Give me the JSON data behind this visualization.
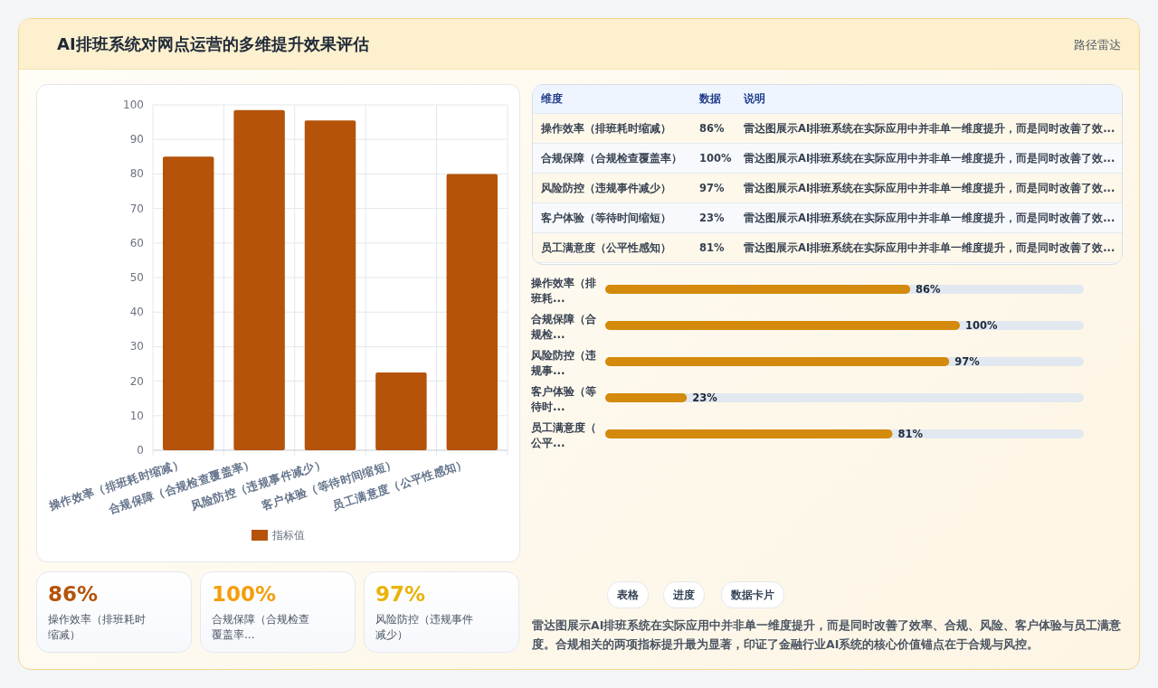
{
  "chart_data": [
    {
      "type": "bar",
      "title": "AI排班系统对网点运营的多维提升效果评估",
      "annotations": [
        "路径雷达"
      ],
      "categories": [
        "操作效率（排班耗时缩减）",
        "合规保障（合规检查覆盖率）",
        "风险防控（违规事件减少）",
        "客户体验（等待时间缩短）",
        "员工满意度（公平性感知）"
      ],
      "series": [
        {
          "name": "指标值",
          "color": "#b45309",
          "values": [
            85,
            98.5,
            95.5,
            22.5,
            80
          ]
        }
      ],
      "ylim": [
        0,
        100
      ],
      "yticks": [
        0,
        10,
        20,
        30,
        40,
        50,
        60,
        70,
        80,
        90,
        100
      ],
      "grid": true,
      "legend": "bottom"
    },
    {
      "type": "other",
      "categories": [
        "操作效率（排班耗时缩减）",
        "合规保障（合规检查覆盖率）",
        "风险防控（违规事件减少）",
        "客户体验（等待时间缩短）",
        "员工满意度（公平性感知）"
      ],
      "value_labels": [
        "86%",
        "100%",
        "97%",
        "23%",
        "81%"
      ],
      "annotations": [
        "维度",
        "数据",
        "说明",
        "雷达图展示AI排班系统在实际应用中并非单一维度提升，而是同时改善了效...",
        "雷达图展示AI排班系统在实际应用中并非单一维度提升，而是同时改善了效...",
        "雷达图展示AI排班系统在实际应用中并非单一维度提升，而是同时改善了效...",
        "雷达图展示AI排班系统在实际应用中并非单一维度提升，而是同时改善了效...",
        "雷达图展示AI排班系统在实际应用中并非单一维度提升，而是同时改善了效..."
      ]
    },
    {
      "type": "bar",
      "orientation": "horizontal",
      "categories": [
        "操作效率（排班耗...",
        "合规保障（合规检...",
        "风险防控（违规事...",
        "客户体验（等待时...",
        "员工满意度（公平..."
      ],
      "values": [
        86,
        100,
        97,
        23,
        81
      ],
      "value_labels": [
        "86%",
        "100%",
        "97%",
        "23%",
        "81%"
      ],
      "color": "#d48a0c"
    },
    {
      "type": "other",
      "categories": [
        "操作效率（排班耗时缩减）",
        "合规保障（合规检查覆盖率...",
        "风险防控（违规事件减少）"
      ],
      "value_labels": [
        "86%",
        "100%",
        "97%"
      ],
      "colors": [
        "#b45309",
        "#f59e0b",
        "#eab308"
      ]
    },
    {
      "type": "other",
      "annotations": [
        "表格",
        "进度",
        "数据卡片",
        "雷达图展示AI排班系统在实际应用中并非单一维度提升，而是同时改善了效率、合规、风险、客户体验与员工满意度。合规相关的两项指标提升最为显著，印证了金融行业AI系统的核心价值锚点在于合规与风控。"
      ]
    }
  ]
}
